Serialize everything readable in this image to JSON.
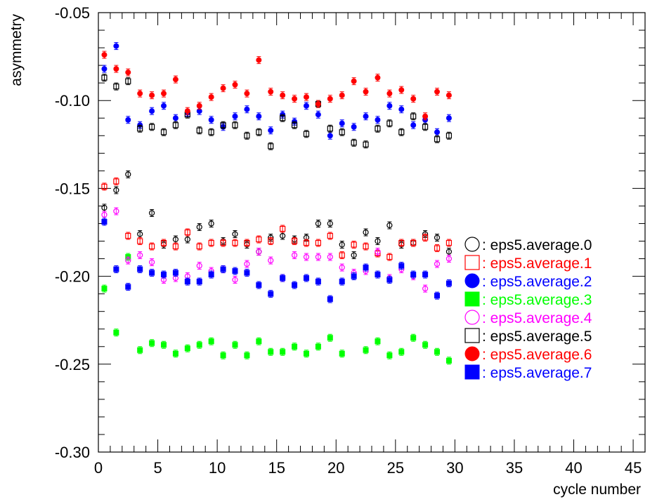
{
  "chart_data": {
    "type": "scatter",
    "title": "",
    "xlabel": "cycle number",
    "ylabel": "asymmetry",
    "xlim": [
      0,
      46
    ],
    "ylim": [
      -0.3,
      -0.05
    ],
    "x_ticks": [
      0,
      5,
      10,
      15,
      20,
      25,
      30,
      35,
      40,
      45
    ],
    "x_tick_labels": [
      "0",
      "5",
      "10",
      "15",
      "20",
      "25",
      "30",
      "35",
      "40",
      "45"
    ],
    "y_ticks": [
      -0.3,
      -0.25,
      -0.2,
      -0.15,
      -0.1,
      -0.05
    ],
    "y_tick_labels": [
      "-0.30",
      "-0.25",
      "-0.20",
      "-0.15",
      "-0.10",
      "-0.05"
    ],
    "grid": false,
    "legend_position": "right",
    "x": [
      0.5,
      1.5,
      2.5,
      3.5,
      4.5,
      5.5,
      6.5,
      7.5,
      8.5,
      9.5,
      10.5,
      11.5,
      12.5,
      13.5,
      14.5,
      15.5,
      16.5,
      17.5,
      18.5,
      19.5,
      20.5,
      21.5,
      22.5,
      23.5,
      24.5,
      25.5,
      26.5,
      27.5,
      28.5,
      29.5
    ],
    "series": [
      {
        "name": "eps5.average.0",
        "color": "#000000",
        "marker": "circle-open",
        "err": 0.002,
        "values": [
          -0.161,
          -0.151,
          -0.142,
          -0.176,
          -0.164,
          -0.182,
          -0.179,
          -0.179,
          -0.172,
          -0.17,
          -0.18,
          -0.176,
          -0.182,
          -0.186,
          -0.178,
          -0.177,
          -0.179,
          -0.178,
          -0.17,
          -0.17,
          -0.182,
          -0.188,
          -0.175,
          -0.18,
          -0.171,
          -0.182,
          -0.181,
          -0.176,
          -0.178,
          -0.186
        ]
      },
      {
        "name": "eps5.average.1",
        "color": "#ff0000",
        "marker": "square-open",
        "err": 0.002,
        "values": [
          -0.149,
          -0.146,
          -0.177,
          -0.18,
          -0.183,
          -0.181,
          -0.183,
          -0.175,
          -0.183,
          -0.181,
          -0.181,
          -0.181,
          -0.181,
          -0.179,
          -0.18,
          -0.173,
          -0.18,
          -0.181,
          -0.181,
          -0.177,
          -0.188,
          -0.182,
          -0.183,
          -0.187,
          -0.189,
          -0.181,
          -0.181,
          -0.178,
          -0.184,
          -0.181
        ]
      },
      {
        "name": "eps5.average.2",
        "color": "#0000ff",
        "marker": "circle-filled",
        "err": 0.002,
        "values": [
          -0.082,
          -0.069,
          -0.111,
          -0.114,
          -0.106,
          -0.103,
          -0.11,
          -0.107,
          -0.106,
          -0.111,
          -0.115,
          -0.109,
          -0.105,
          -0.109,
          -0.117,
          -0.108,
          -0.112,
          -0.103,
          -0.108,
          -0.12,
          -0.113,
          -0.115,
          -0.109,
          -0.111,
          -0.103,
          -0.105,
          -0.114,
          -0.111,
          -0.118,
          -0.11
        ]
      },
      {
        "name": "eps5.average.3",
        "color": "#00ff00",
        "marker": "square-filled",
        "err": 0.002,
        "values": [
          -0.207,
          -0.232,
          -0.189,
          -0.242,
          -0.238,
          -0.239,
          -0.244,
          -0.241,
          -0.239,
          -0.237,
          -0.245,
          -0.239,
          -0.245,
          -0.237,
          -0.243,
          -0.243,
          -0.24,
          -0.244,
          -0.24,
          -0.235,
          -0.244,
          null,
          -0.242,
          -0.237,
          -0.245,
          -0.243,
          -0.235,
          -0.239,
          -0.243,
          -0.248
        ]
      },
      {
        "name": "eps5.average.4",
        "color": "#ff00ff",
        "marker": "circle-open",
        "err": 0.002,
        "values": [
          -0.165,
          -0.163,
          -0.191,
          -0.188,
          -0.192,
          -0.202,
          -0.201,
          -0.2,
          -0.194,
          -0.197,
          -0.196,
          -0.202,
          -0.193,
          -0.186,
          -0.191,
          -0.201,
          -0.188,
          -0.189,
          -0.189,
          -0.189,
          -0.195,
          -0.198,
          -0.197,
          -0.186,
          -0.201,
          -0.196,
          -0.2,
          -0.207,
          -0.193,
          -0.19
        ]
      },
      {
        "name": "eps5.average.5",
        "color": "#000000",
        "marker": "square-open",
        "err": 0.002,
        "values": [
          -0.087,
          -0.092,
          -0.089,
          -0.116,
          -0.115,
          -0.118,
          -0.114,
          -0.108,
          -0.117,
          -0.118,
          -0.114,
          -0.114,
          -0.12,
          -0.118,
          -0.126,
          -0.11,
          -0.114,
          -0.119,
          -0.102,
          -0.116,
          -0.118,
          -0.124,
          -0.125,
          -0.116,
          -0.113,
          -0.118,
          -0.109,
          -0.115,
          -0.122,
          -0.12
        ]
      },
      {
        "name": "eps5.average.6",
        "color": "#ff0000",
        "marker": "circle-filled",
        "err": 0.002,
        "values": [
          -0.074,
          -0.082,
          -0.084,
          -0.096,
          -0.097,
          -0.096,
          -0.088,
          -0.106,
          -0.103,
          -0.098,
          -0.093,
          -0.091,
          -0.096,
          -0.077,
          -0.095,
          -0.097,
          -0.099,
          -0.098,
          -0.102,
          -0.099,
          -0.097,
          -0.089,
          -0.095,
          -0.087,
          -0.096,
          -0.094,
          -0.099,
          -0.109,
          -0.095,
          -0.097
        ]
      },
      {
        "name": "eps5.average.7",
        "color": "#0000ff",
        "marker": "square-filled",
        "err": 0.002,
        "values": [
          -0.169,
          -0.196,
          -0.206,
          -0.196,
          -0.198,
          -0.199,
          -0.198,
          -0.203,
          -0.203,
          -0.199,
          -0.196,
          -0.197,
          -0.198,
          -0.205,
          -0.21,
          -0.201,
          -0.205,
          -0.201,
          -0.203,
          -0.213,
          -0.203,
          -0.2,
          -0.195,
          -0.199,
          -0.202,
          -0.194,
          -0.199,
          -0.199,
          -0.211,
          -0.204
        ]
      }
    ]
  }
}
